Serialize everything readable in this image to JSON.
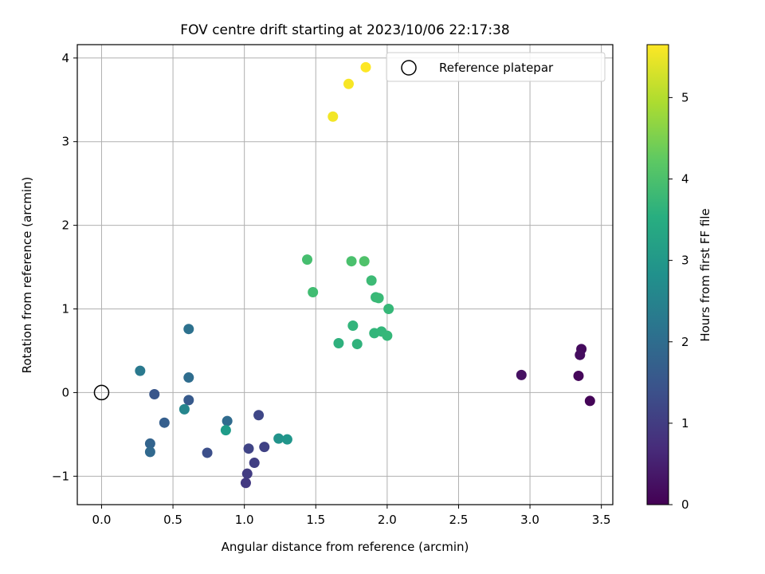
{
  "chart_data": {
    "type": "scatter",
    "title": "FOV centre drift starting at 2023/10/06 22:17:38",
    "xlabel": "Angular distance from reference (arcmin)",
    "ylabel": "Rotation from reference (arcmin)",
    "xlim": [
      -0.17,
      3.58
    ],
    "ylim": [
      -1.34,
      4.16
    ],
    "xticks": [
      0.0,
      0.5,
      1.0,
      1.5,
      2.0,
      2.5,
      3.0,
      3.5
    ],
    "xtick_labels": [
      "0.0",
      "0.5",
      "1.0",
      "1.5",
      "2.0",
      "2.5",
      "3.0",
      "3.5"
    ],
    "yticks": [
      -1,
      0,
      1,
      2,
      3,
      4
    ],
    "ytick_labels": [
      "−1",
      "0",
      "1",
      "2",
      "3",
      "4"
    ],
    "grid": true,
    "legend": {
      "position": "upper right",
      "entries": [
        "Reference platepar"
      ]
    },
    "reference_point": {
      "x": 0.0,
      "y": 0.0
    },
    "colorbar": {
      "label": "Hours from first FF file",
      "colormap": "viridis",
      "range": [
        0,
        5.65
      ],
      "ticks": [
        0,
        1,
        2,
        3,
        4,
        5
      ],
      "tick_labels": [
        "0",
        "1",
        "2",
        "3",
        "4",
        "5"
      ]
    },
    "points": [
      {
        "x": 3.42,
        "y": -0.1,
        "c": 0.05
      },
      {
        "x": 3.34,
        "y": 0.2,
        "c": 0.1
      },
      {
        "x": 3.36,
        "y": 0.52,
        "c": 0.15
      },
      {
        "x": 3.35,
        "y": 0.45,
        "c": 0.2
      },
      {
        "x": 2.94,
        "y": 0.21,
        "c": 0.25
      },
      {
        "x": 1.01,
        "y": -1.08,
        "c": 0.95
      },
      {
        "x": 1.02,
        "y": -0.97,
        "c": 1.0
      },
      {
        "x": 1.07,
        "y": -0.84,
        "c": 1.05
      },
      {
        "x": 1.14,
        "y": -0.65,
        "c": 1.1
      },
      {
        "x": 1.03,
        "y": -0.67,
        "c": 1.15
      },
      {
        "x": 1.1,
        "y": -0.27,
        "c": 1.2
      },
      {
        "x": 0.74,
        "y": -0.72,
        "c": 1.35
      },
      {
        "x": 0.37,
        "y": -0.02,
        "c": 1.5
      },
      {
        "x": 0.61,
        "y": -0.09,
        "c": 1.6
      },
      {
        "x": 0.44,
        "y": -0.36,
        "c": 1.7
      },
      {
        "x": 0.34,
        "y": -0.61,
        "c": 1.8
      },
      {
        "x": 0.34,
        "y": -0.71,
        "c": 1.9
      },
      {
        "x": 0.88,
        "y": -0.34,
        "c": 1.95
      },
      {
        "x": 0.61,
        "y": 0.18,
        "c": 2.0
      },
      {
        "x": 0.61,
        "y": 0.76,
        "c": 2.1
      },
      {
        "x": 0.27,
        "y": 0.26,
        "c": 2.3
      },
      {
        "x": 0.58,
        "y": -0.2,
        "c": 2.6
      },
      {
        "x": 1.24,
        "y": -0.55,
        "c": 2.9
      },
      {
        "x": 1.3,
        "y": -0.56,
        "c": 2.95
      },
      {
        "x": 0.87,
        "y": -0.45,
        "c": 3.1
      },
      {
        "x": 1.66,
        "y": 0.59,
        "c": 3.6
      },
      {
        "x": 1.79,
        "y": 0.58,
        "c": 3.65
      },
      {
        "x": 1.76,
        "y": 0.8,
        "c": 3.7
      },
      {
        "x": 1.91,
        "y": 0.71,
        "c": 3.72
      },
      {
        "x": 1.96,
        "y": 0.73,
        "c": 3.74
      },
      {
        "x": 2.0,
        "y": 0.68,
        "c": 3.76
      },
      {
        "x": 2.01,
        "y": 1.0,
        "c": 3.78
      },
      {
        "x": 1.92,
        "y": 1.14,
        "c": 3.8
      },
      {
        "x": 1.94,
        "y": 1.13,
        "c": 3.82
      },
      {
        "x": 1.89,
        "y": 1.34,
        "c": 3.85
      },
      {
        "x": 1.48,
        "y": 1.2,
        "c": 3.9
      },
      {
        "x": 1.44,
        "y": 1.59,
        "c": 3.95
      },
      {
        "x": 1.75,
        "y": 1.57,
        "c": 4.0
      },
      {
        "x": 1.84,
        "y": 1.57,
        "c": 4.05
      },
      {
        "x": 1.62,
        "y": 3.3,
        "c": 5.55
      },
      {
        "x": 1.73,
        "y": 3.69,
        "c": 5.6
      },
      {
        "x": 1.85,
        "y": 3.89,
        "c": 5.65
      }
    ]
  }
}
